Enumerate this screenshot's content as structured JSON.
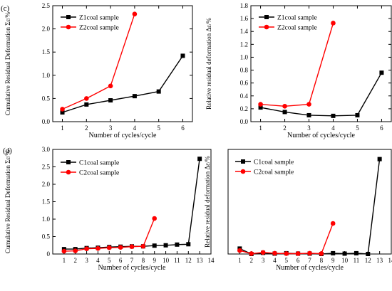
{
  "panel_labels": [
    "(c)",
    "(d)"
  ],
  "chart_data": [
    {
      "type": "line",
      "panel": "(c)",
      "ylabel": "Cumulative Residual Deformation Σε",
      "ylabel_suffix": "/%",
      "xlabel": "Number of cycles/cycle",
      "xlim": [
        0.6,
        6.4
      ],
      "ylim": [
        0,
        2.5
      ],
      "xticks": [
        1,
        2,
        3,
        4,
        5,
        6
      ],
      "yticks": [
        0.0,
        0.5,
        1.0,
        1.5,
        2.0,
        2.5
      ],
      "ytick_labels": [
        "0.0",
        "0.5",
        "1.0",
        "1.5",
        "2.0",
        "2.5"
      ],
      "legend_position": "top-left",
      "series": [
        {
          "name": "Z1coal sample",
          "color": "#000000",
          "marker": "square",
          "x": [
            1,
            2,
            3,
            4,
            5,
            6
          ],
          "values": [
            0.2,
            0.37,
            0.46,
            0.55,
            0.65,
            1.42
          ]
        },
        {
          "name": "Z2coal sample",
          "color": "#ff0000",
          "marker": "circle",
          "x": [
            1,
            2,
            3,
            4
          ],
          "values": [
            0.27,
            0.5,
            0.77,
            2.32
          ]
        }
      ]
    },
    {
      "type": "line",
      "panel": "",
      "ylabel": "Relative residual deformation Δε",
      "ylabel_suffix": "/%",
      "xlabel": "Number of cycles/cycle",
      "xlim": [
        0.6,
        6.4
      ],
      "ylim": [
        0,
        1.8
      ],
      "xticks": [
        1,
        2,
        3,
        4,
        5,
        6
      ],
      "yticks": [
        0.0,
        0.2,
        0.4,
        0.6,
        0.8,
        1.0,
        1.2,
        1.4,
        1.6,
        1.8
      ],
      "ytick_labels": [
        "0.0",
        "0.2",
        "0.4",
        "0.6",
        "0.8",
        "1.0",
        "1.2",
        "1.4",
        "1.6",
        "1.8"
      ],
      "legend_position": "top-left",
      "series": [
        {
          "name": "Z1coal sample",
          "color": "#000000",
          "marker": "square",
          "x": [
            1,
            2,
            3,
            4,
            5,
            6
          ],
          "values": [
            0.22,
            0.15,
            0.1,
            0.09,
            0.1,
            0.76
          ]
        },
        {
          "name": "Z2coal sample",
          "color": "#ff0000",
          "marker": "circle",
          "x": [
            1,
            2,
            3,
            4
          ],
          "values": [
            0.27,
            0.24,
            0.27,
            1.53
          ]
        }
      ]
    },
    {
      "type": "line",
      "panel": "(d)",
      "ylabel": "Cumulative Residual Deformation Σε",
      "ylabel_suffix": "/%",
      "xlabel": "Number of cycles/cycle",
      "xlim": [
        0,
        14
      ],
      "ylim": [
        0,
        3.0
      ],
      "xticks": [
        1,
        2,
        3,
        4,
        5,
        6,
        7,
        8,
        9,
        10,
        11,
        12,
        13,
        14
      ],
      "yticks": [
        0.0,
        0.5,
        1.0,
        1.5,
        2.0,
        2.5,
        3.0
      ],
      "ytick_labels": [
        "0",
        "0.5",
        "1.0",
        "1.5",
        "2.0",
        "2.5",
        "3.0"
      ],
      "legend_position": "top-left",
      "series": [
        {
          "name": "C1coal sample",
          "color": "#000000",
          "marker": "square",
          "x": [
            1,
            2,
            3,
            4,
            5,
            6,
            7,
            8,
            9,
            10,
            11,
            12,
            13
          ],
          "values": [
            0.14,
            0.14,
            0.17,
            0.18,
            0.2,
            0.21,
            0.22,
            0.22,
            0.24,
            0.25,
            0.27,
            0.28,
            2.73
          ]
        },
        {
          "name": "C2coal sample",
          "color": "#ff0000",
          "marker": "circle",
          "x": [
            1,
            2,
            3,
            4,
            5,
            6,
            7,
            8,
            9
          ],
          "values": [
            0.08,
            0.09,
            0.15,
            0.16,
            0.18,
            0.19,
            0.21,
            0.22,
            1.02
          ]
        }
      ]
    },
    {
      "type": "line",
      "panel": "",
      "ylabel": "Relative residual deformation Δε",
      "ylabel_suffix": "/%",
      "xlabel": "Number of cycles/cycle",
      "xlim": [
        0,
        14
      ],
      "ylim": [
        0,
        2.7
      ],
      "xticks": [
        1,
        2,
        3,
        4,
        5,
        6,
        7,
        8,
        9,
        10,
        11,
        12,
        13,
        14
      ],
      "yticks": [],
      "ytick_labels": [],
      "legend_position": "top-left",
      "series": [
        {
          "name": "C1coal sample",
          "color": "#000000",
          "marker": "square",
          "x": [
            1,
            2,
            3,
            4,
            5,
            6,
            7,
            8,
            9,
            10,
            11,
            12,
            13
          ],
          "values": [
            0.14,
            0.0,
            0.03,
            0.01,
            0.02,
            0.01,
            0.01,
            0.0,
            0.02,
            0.01,
            0.02,
            0.0,
            2.45
          ]
        },
        {
          "name": "C2coal sample",
          "color": "#ff0000",
          "marker": "circle",
          "x": [
            1,
            2,
            3,
            4,
            5,
            6,
            7,
            8,
            9
          ],
          "values": [
            0.09,
            0.01,
            0.04,
            0.02,
            0.01,
            0.01,
            0.02,
            0.01,
            0.79
          ]
        }
      ]
    }
  ]
}
